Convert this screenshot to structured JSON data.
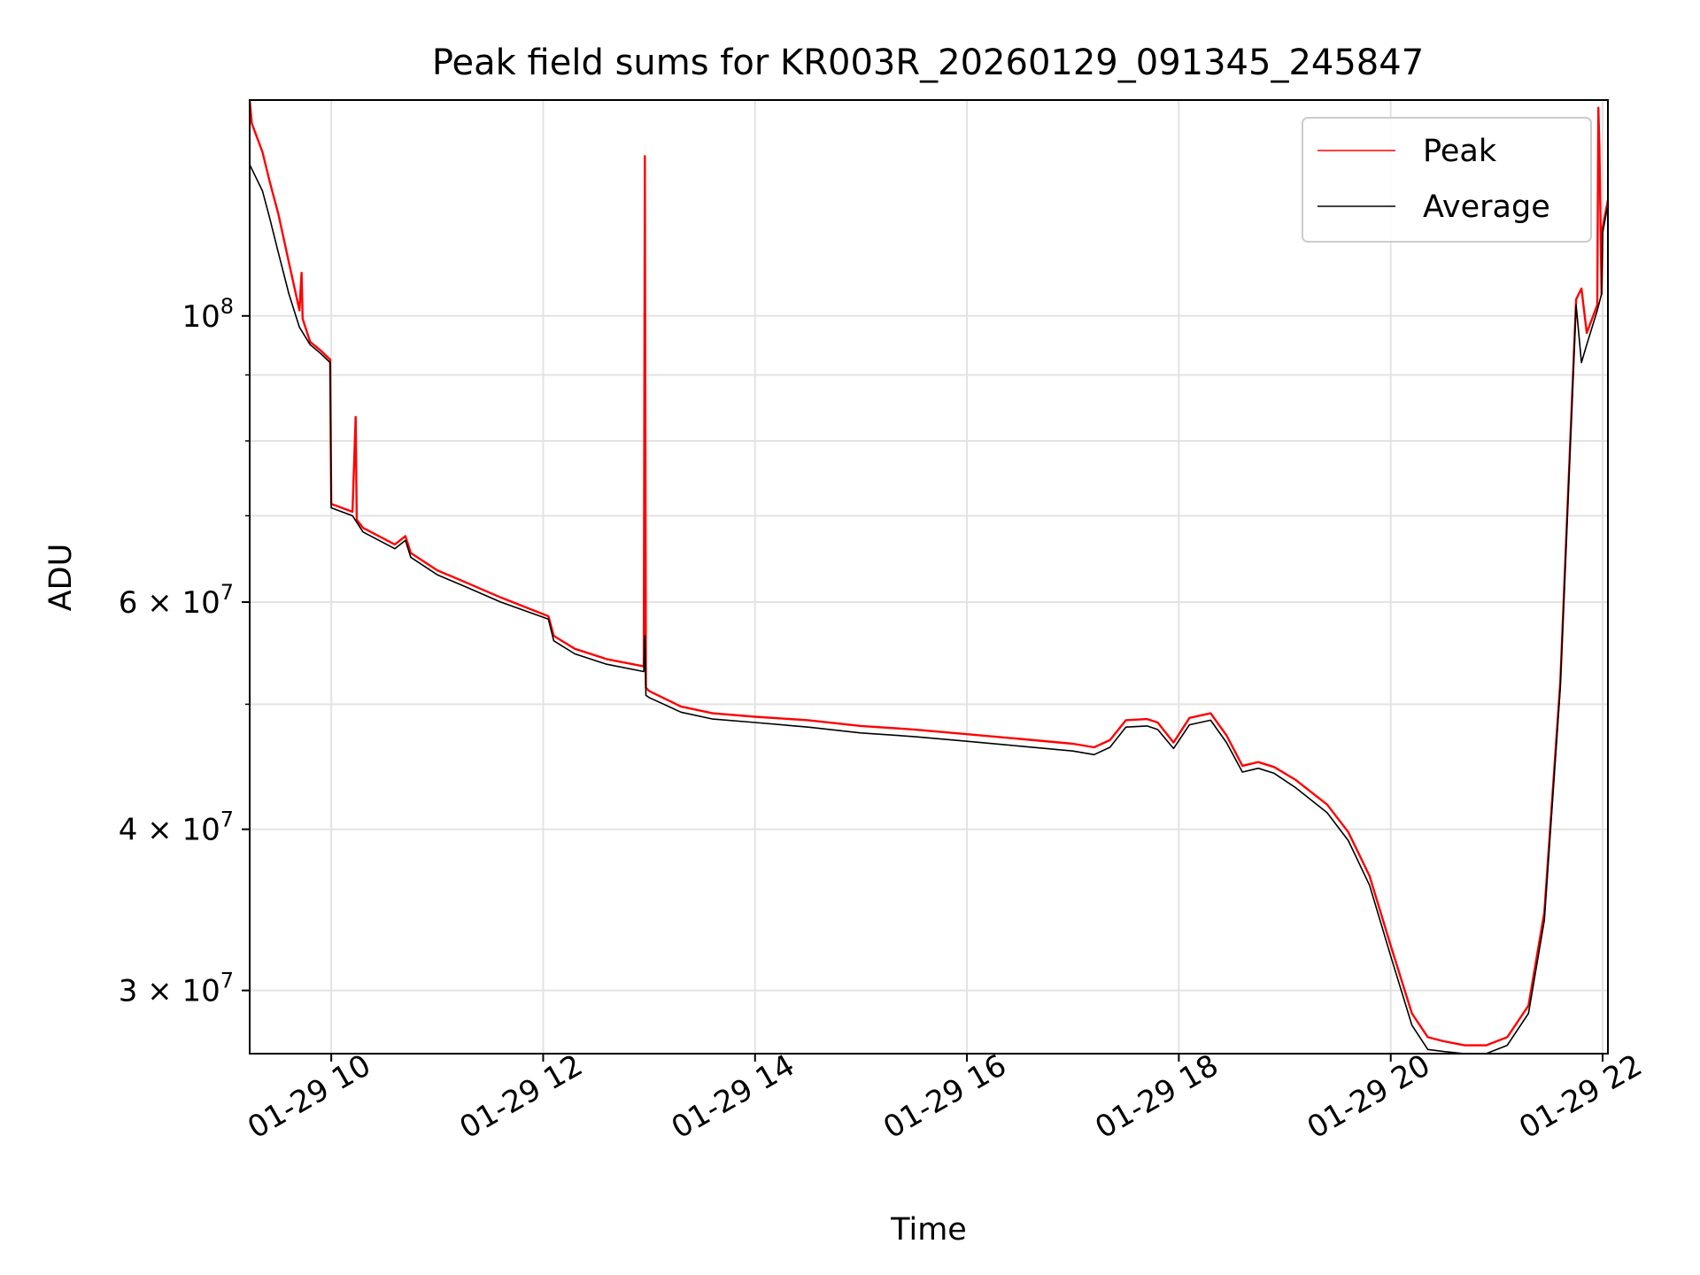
{
  "chart_data": {
    "type": "line",
    "title": "Peak field sums for KR003R_20260129_091345_245847",
    "xlabel": "Time",
    "ylabel": "ADU",
    "yscale": "log",
    "xlim": [
      9.23,
      22.05
    ],
    "ylim": [
      26800000,
      147000000
    ],
    "grid": true,
    "legend_position": "upper right",
    "x_ticks": [
      {
        "value": 10,
        "label": "01-29 10"
      },
      {
        "value": 12,
        "label": "01-29 12"
      },
      {
        "value": 14,
        "label": "01-29 14"
      },
      {
        "value": 16,
        "label": "01-29 16"
      },
      {
        "value": 18,
        "label": "01-29 18"
      },
      {
        "value": 20,
        "label": "01-29 20"
      },
      {
        "value": 22,
        "label": "01-29 22"
      }
    ],
    "y_ticks": [
      {
        "value": 100000000,
        "base": "10",
        "exp": "8"
      },
      {
        "value": 60000000,
        "base": "6 × 10",
        "exp": "7"
      },
      {
        "value": 40000000,
        "base": "4 × 10",
        "exp": "7"
      },
      {
        "value": 30000000,
        "base": "3 × 10",
        "exp": "7"
      }
    ],
    "y_minor_ticks": [
      90000000,
      80000000,
      70000000,
      50000000
    ],
    "series": [
      {
        "name": "Peak",
        "color": "#ff0000",
        "x": [
          9.23,
          9.25,
          9.35,
          9.42,
          9.5,
          9.6,
          9.7,
          9.72,
          9.73,
          9.8,
          9.9,
          9.99,
          10.0,
          10.2,
          10.23,
          10.24,
          10.3,
          10.6,
          10.7,
          10.75,
          11.0,
          11.3,
          11.6,
          12.05,
          12.1,
          12.3,
          12.6,
          12.95,
          12.96,
          12.97,
          13.0,
          13.3,
          13.6,
          14.0,
          14.5,
          15.0,
          15.5,
          16.0,
          16.5,
          17.0,
          17.2,
          17.35,
          17.5,
          17.7,
          17.8,
          17.95,
          18.1,
          18.3,
          18.45,
          18.6,
          18.75,
          18.9,
          19.1,
          19.4,
          19.6,
          19.8,
          20.0,
          20.2,
          20.35,
          20.5,
          20.7,
          20.9,
          21.1,
          21.3,
          21.45,
          21.6,
          21.75,
          21.8,
          21.85,
          21.95,
          21.96,
          21.97,
          21.99,
          22.0,
          22.05
        ],
        "y": [
          147000000,
          141000000,
          134000000,
          127000000,
          120000000,
          110000000,
          101000000,
          108000000,
          99500000,
          95500000,
          94000000,
          92500000,
          71500000,
          70500000,
          83500000,
          69500000,
          68500000,
          66500000,
          67500000,
          65500000,
          63500000,
          62000000,
          60500000,
          58500000,
          56500000,
          55200000,
          54200000,
          53500000,
          133000000,
          51500000,
          51200000,
          49800000,
          49200000,
          48900000,
          48600000,
          48100000,
          47800000,
          47400000,
          47000000,
          46600000,
          46300000,
          46900000,
          48600000,
          48700000,
          48400000,
          46700000,
          48800000,
          49200000,
          47300000,
          44800000,
          45100000,
          44700000,
          43700000,
          41800000,
          39800000,
          36800000,
          32500000,
          28800000,
          27600000,
          27400000,
          27200000,
          27200000,
          27600000,
          29200000,
          34500000,
          52000000,
          103000000,
          105000000,
          97000000,
          102000000,
          145000000,
          135000000,
          104000000,
          117000000,
          123000000
        ]
      },
      {
        "name": "Average",
        "color": "#000000",
        "x": [
          9.23,
          9.25,
          9.35,
          9.42,
          9.5,
          9.6,
          9.7,
          9.8,
          9.9,
          9.99,
          10.0,
          10.2,
          10.3,
          10.6,
          10.7,
          10.75,
          11.0,
          11.3,
          11.6,
          12.05,
          12.1,
          12.3,
          12.6,
          12.95,
          12.96,
          12.97,
          13.0,
          13.3,
          13.6,
          14.0,
          14.5,
          15.0,
          15.5,
          16.0,
          16.5,
          17.0,
          17.2,
          17.35,
          17.5,
          17.7,
          17.8,
          17.95,
          18.1,
          18.3,
          18.45,
          18.6,
          18.75,
          18.9,
          19.1,
          19.4,
          19.6,
          19.8,
          20.0,
          20.2,
          20.35,
          20.5,
          20.7,
          20.9,
          21.1,
          21.3,
          21.45,
          21.6,
          21.75,
          21.8,
          21.85,
          21.95,
          21.99,
          22.0,
          22.05
        ],
        "y": [
          131000000,
          130000000,
          125000000,
          119000000,
          112000000,
          104000000,
          98000000,
          95000000,
          93500000,
          92000000,
          71000000,
          70000000,
          68000000,
          66000000,
          67000000,
          65000000,
          63000000,
          61500000,
          60000000,
          58200000,
          56000000,
          54700000,
          53700000,
          53000000,
          56500000,
          50800000,
          50600000,
          49300000,
          48700000,
          48400000,
          48000000,
          47500000,
          47200000,
          46800000,
          46400000,
          46000000,
          45700000,
          46300000,
          48000000,
          48100000,
          47800000,
          46200000,
          48200000,
          48600000,
          46700000,
          44300000,
          44600000,
          44200000,
          43100000,
          41200000,
          39200000,
          36200000,
          31900000,
          28200000,
          27000000,
          26900000,
          26800000,
          26800000,
          27200000,
          28800000,
          34000000,
          51500000,
          102000000,
          92000000,
          95000000,
          101000000,
          104000000,
          116000000,
          122000000
        ]
      }
    ]
  }
}
